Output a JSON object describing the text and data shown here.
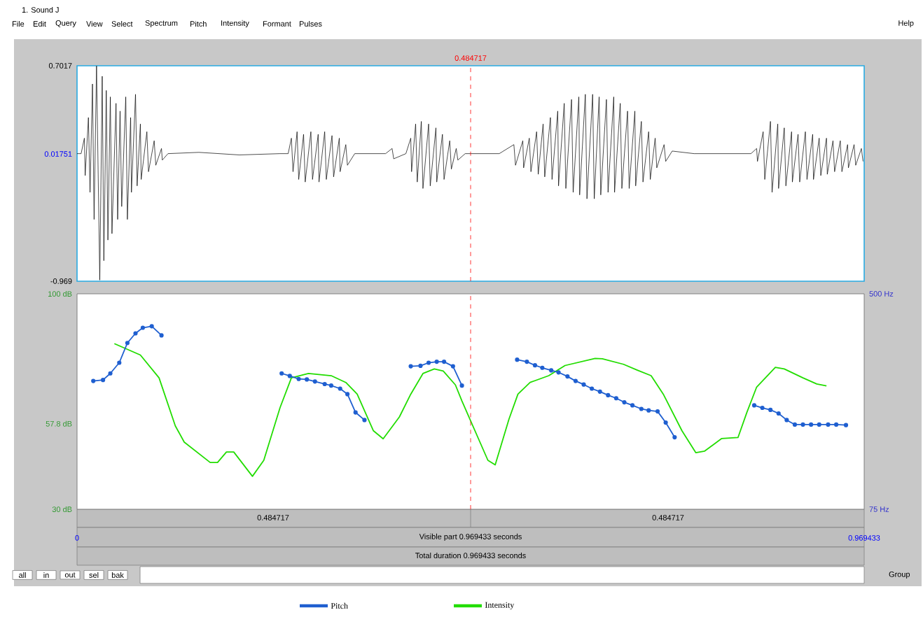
{
  "chart_data": [
    {
      "type": "line",
      "title": "1. Sound J",
      "annotations": [
        "File",
        "Edit",
        "Query",
        "View",
        "Select",
        "Spectrum",
        "Pitch",
        "Intensity",
        "Formant",
        "Pulses",
        "Help"
      ],
      "xlim": [
        0,
        0.969433
      ],
      "ylim": [
        -0.969,
        0.7017
      ],
      "yticks": [
        {
          "value": 0.7017,
          "label": "0.7017"
        },
        {
          "value": 0.01751,
          "label": "0.01751"
        },
        {
          "value": -0.969,
          "label": "-0.969"
        }
      ],
      "tick_labels": "y",
      "color": "#000000",
      "ref_lines": [
        {
          "axis": "x",
          "value": 0.484717,
          "label": "0.484717",
          "color": "#ff0000",
          "line_style": "dashed"
        }
      ],
      "x": [
        0,
        0.005,
        0.009,
        0.01,
        0.014,
        0.016,
        0.019,
        0.021,
        0.024,
        0.028,
        0.031,
        0.033,
        0.036,
        0.038,
        0.041,
        0.043,
        0.048,
        0.05,
        0.053,
        0.055,
        0.06,
        0.062,
        0.066,
        0.067,
        0.072,
        0.074,
        0.078,
        0.079,
        0.086,
        0.088,
        0.095,
        0.097,
        0.104,
        0.105,
        0.112,
        0.15,
        0.2,
        0.25,
        0.26,
        0.264,
        0.266,
        0.271,
        0.273,
        0.279,
        0.281,
        0.288,
        0.29,
        0.297,
        0.298,
        0.305,
        0.307,
        0.314,
        0.316,
        0.323,
        0.324,
        0.331,
        0.333,
        0.342,
        0.36,
        0.38,
        0.388,
        0.39,
        0.405,
        0.411,
        0.412,
        0.417,
        0.419,
        0.424,
        0.426,
        0.433,
        0.435,
        0.442,
        0.443,
        0.45,
        0.452,
        0.459,
        0.461,
        0.467,
        0.469,
        0.478,
        0.5,
        0.52,
        0.538,
        0.54,
        0.549,
        0.55,
        0.557,
        0.559,
        0.566,
        0.568,
        0.574,
        0.576,
        0.583,
        0.585,
        0.592,
        0.593,
        0.6,
        0.602,
        0.609,
        0.611,
        0.618,
        0.619,
        0.626,
        0.628,
        0.635,
        0.637,
        0.643,
        0.645,
        0.652,
        0.654,
        0.661,
        0.662,
        0.669,
        0.671,
        0.678,
        0.68,
        0.687,
        0.688,
        0.695,
        0.697,
        0.704,
        0.706,
        0.712,
        0.714,
        0.723,
        0.725,
        0.733,
        0.76,
        0.8,
        0.83,
        0.837,
        0.838,
        0.845,
        0.847,
        0.854,
        0.856,
        0.863,
        0.864,
        0.871,
        0.873,
        0.88,
        0.881,
        0.888,
        0.89,
        0.897,
        0.899,
        0.906,
        0.907,
        0.914,
        0.916,
        0.923,
        0.924,
        0.931,
        0.933,
        0.94,
        0.942,
        0.949,
        0.95,
        0.957,
        0.959,
        0.966,
        0.968
      ],
      "values": [
        0.02,
        0.02,
        0.14,
        -0.15,
        0.3,
        -0.28,
        0.56,
        -0.49,
        0.7,
        -0.96,
        0.62,
        -0.81,
        0.51,
        -0.65,
        0.46,
        -0.6,
        0.41,
        -0.49,
        0.35,
        -0.39,
        0.46,
        -0.49,
        0.3,
        -0.28,
        0.48,
        -0.23,
        0.25,
        -0.18,
        0.19,
        -0.12,
        0.12,
        -0.07,
        0.06,
        -0.03,
        0.02,
        0.03,
        0.01,
        0.02,
        0.02,
        0.14,
        -0.12,
        0.19,
        -0.18,
        0.17,
        -0.2,
        0.19,
        -0.18,
        0.17,
        -0.2,
        0.19,
        -0.18,
        0.16,
        -0.16,
        0.14,
        -0.12,
        0.09,
        -0.07,
        0.02,
        0.02,
        0.02,
        0.06,
        -0.02,
        0.02,
        0.14,
        -0.12,
        0.25,
        -0.2,
        0.27,
        -0.25,
        0.25,
        -0.23,
        0.22,
        -0.2,
        0.17,
        -0.18,
        0.12,
        -0.1,
        0.06,
        -0.03,
        0.02,
        0.02,
        0.02,
        0.09,
        -0.07,
        0.12,
        -0.09,
        0.14,
        -0.12,
        0.19,
        -0.14,
        0.25,
        -0.16,
        0.3,
        -0.18,
        0.35,
        -0.23,
        0.41,
        -0.25,
        0.44,
        -0.28,
        0.46,
        -0.3,
        0.48,
        -0.33,
        0.48,
        -0.33,
        0.46,
        -0.3,
        0.44,
        -0.28,
        0.46,
        -0.28,
        0.41,
        -0.25,
        0.35,
        -0.25,
        0.35,
        -0.23,
        0.27,
        -0.2,
        0.19,
        -0.18,
        0.14,
        -0.09,
        0.09,
        -0.04,
        0.04,
        0.02,
        0.02,
        0.02,
        0.06,
        -0.04,
        0.19,
        -0.18,
        0.27,
        -0.28,
        0.25,
        -0.25,
        0.22,
        -0.23,
        0.19,
        -0.2,
        0.17,
        -0.2,
        0.19,
        -0.18,
        0.17,
        -0.18,
        0.14,
        -0.15,
        0.14,
        -0.14,
        0.12,
        -0.12,
        0.12,
        -0.12,
        0.09,
        -0.09,
        0.09,
        -0.07,
        0.06,
        -0.04
      ]
    },
    {
      "type": "line",
      "legend": "bottom",
      "annotations": [
        "0.484717",
        "0.484717",
        "Visible part 0.969433 seconds",
        "Total duration 0.969433 seconds",
        "all",
        "in",
        "out",
        "sel",
        "bak",
        "Group"
      ],
      "xlim": [
        0,
        0.969433
      ],
      "xticks": [
        0,
        0.969433
      ],
      "ylim": [
        30,
        100
      ],
      "yticks": [
        {
          "value": 100,
          "label": "100 dB"
        },
        {
          "value": 57.8,
          "label": "57.8 dB"
        },
        {
          "value": 30,
          "label": "30 dB"
        }
      ],
      "y2lim": [
        75,
        500
      ],
      "y2ticks": [
        {
          "value": 500,
          "label": "500 Hz"
        },
        {
          "value": 75,
          "label": "75 Hz"
        }
      ],
      "ref_lines": [
        {
          "axis": "x",
          "value": 0.484717,
          "color": "#ff0000",
          "line_style": "dashed"
        }
      ],
      "series": [
        {
          "name": "Pitch",
          "color": "#1f5fd0",
          "axis": "y2",
          "marker": "circle",
          "x": [
            0.02,
            0.032,
            0.041,
            0.052,
            0.062,
            0.072,
            0.081,
            0.092,
            0.104,
            0.18,
            0.252,
            0.262,
            0.273,
            0.283,
            0.293,
            0.305,
            0.313,
            0.324,
            0.333,
            0.343,
            0.354,
            0.38,
            0.411,
            0.423,
            0.433,
            0.443,
            0.452,
            0.463,
            0.474,
            0.51,
            0.542,
            0.554,
            0.564,
            0.573,
            0.584,
            0.593,
            0.604,
            0.614,
            0.624,
            0.634,
            0.644,
            0.654,
            0.664,
            0.674,
            0.684,
            0.695,
            0.704,
            0.715,
            0.725,
            0.736,
            0.78,
            0.834,
            0.844,
            0.854,
            0.864,
            0.874,
            0.884,
            0.894,
            0.904,
            0.914,
            0.925,
            0.935,
            0.947
          ],
          "values": [
            328,
            330,
            343,
            364,
            403,
            422,
            433,
            436,
            418,
            null,
            343,
            338,
            332,
            331,
            327,
            322,
            319,
            313,
            302,
            266,
            251,
            null,
            357,
            358,
            364,
            366,
            366,
            357,
            319,
            null,
            370,
            366,
            359,
            354,
            349,
            345,
            337,
            328,
            321,
            313,
            307,
            300,
            294,
            286,
            280,
            273,
            270,
            268,
            246,
            217,
            null,
            280,
            275,
            271,
            264,
            251,
            242,
            242,
            242,
            242,
            242,
            242,
            241
          ]
        },
        {
          "name": "Intensity",
          "color": "#22dd00",
          "axis": "y",
          "marker": "none",
          "x": [
            0.046,
            0.078,
            0.101,
            0.121,
            0.132,
            0.164,
            0.173,
            0.184,
            0.193,
            0.216,
            0.23,
            0.25,
            0.264,
            0.285,
            0.313,
            0.331,
            0.345,
            0.365,
            0.377,
            0.397,
            0.411,
            0.426,
            0.44,
            0.451,
            0.466,
            0.474,
            0.506,
            0.515,
            0.532,
            0.543,
            0.558,
            0.581,
            0.601,
            0.638,
            0.647,
            0.673,
            0.69,
            0.707,
            0.722,
            0.745,
            0.762,
            0.773,
            0.794,
            0.814,
            0.825,
            0.837,
            0.86,
            0.871,
            0.894,
            0.911,
            0.923
          ],
          "values": [
            83.8,
            80.1,
            72.7,
            57.1,
            51.8,
            45.2,
            45.2,
            48.6,
            48.6,
            40.7,
            45.9,
            63.0,
            72.7,
            74.1,
            73.4,
            71.2,
            67.4,
            55.5,
            52.9,
            60.0,
            67.4,
            74.1,
            75.6,
            74.9,
            70.4,
            65.2,
            45.9,
            44.4,
            59.3,
            67.4,
            71.2,
            73.4,
            76.7,
            79.0,
            78.9,
            77.1,
            75.2,
            73.4,
            67.4,
            55.5,
            48.4,
            48.9,
            53.0,
            53.3,
            61.5,
            69.7,
            76.1,
            75.6,
            72.7,
            70.7,
            70.1
          ]
        }
      ]
    }
  ]
}
